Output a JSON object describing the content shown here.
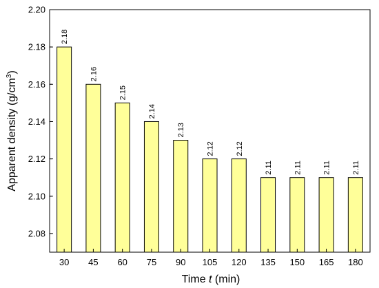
{
  "chart_data": {
    "type": "bar",
    "categories": [
      "30",
      "45",
      "60",
      "75",
      "90",
      "105",
      "120",
      "135",
      "150",
      "165",
      "180"
    ],
    "values": [
      2.18,
      2.16,
      2.15,
      2.14,
      2.13,
      2.12,
      2.12,
      2.11,
      2.11,
      2.11,
      2.11
    ],
    "data_labels": [
      "2.18",
      "2.16",
      "2.15",
      "2.14",
      "2.13",
      "2.12",
      "2.12",
      "2.11",
      "2.11",
      "2.11",
      "2.11"
    ],
    "title": "",
    "xlabel": {
      "prefix": "Time ",
      "italic": "t",
      "suffix": " (min)"
    },
    "ylabel": {
      "main": "Apparent density (g/cm",
      "sup": "3",
      "close": ")"
    },
    "ylim": [
      2.07,
      2.2
    ],
    "yticks": [
      "2.08",
      "2.10",
      "2.12",
      "2.14",
      "2.16",
      "2.18",
      "2.20"
    ],
    "grid": false,
    "colors": {
      "bar_fill": "#ffff99",
      "bar_stroke": "#000000",
      "axis": "#000000"
    }
  }
}
